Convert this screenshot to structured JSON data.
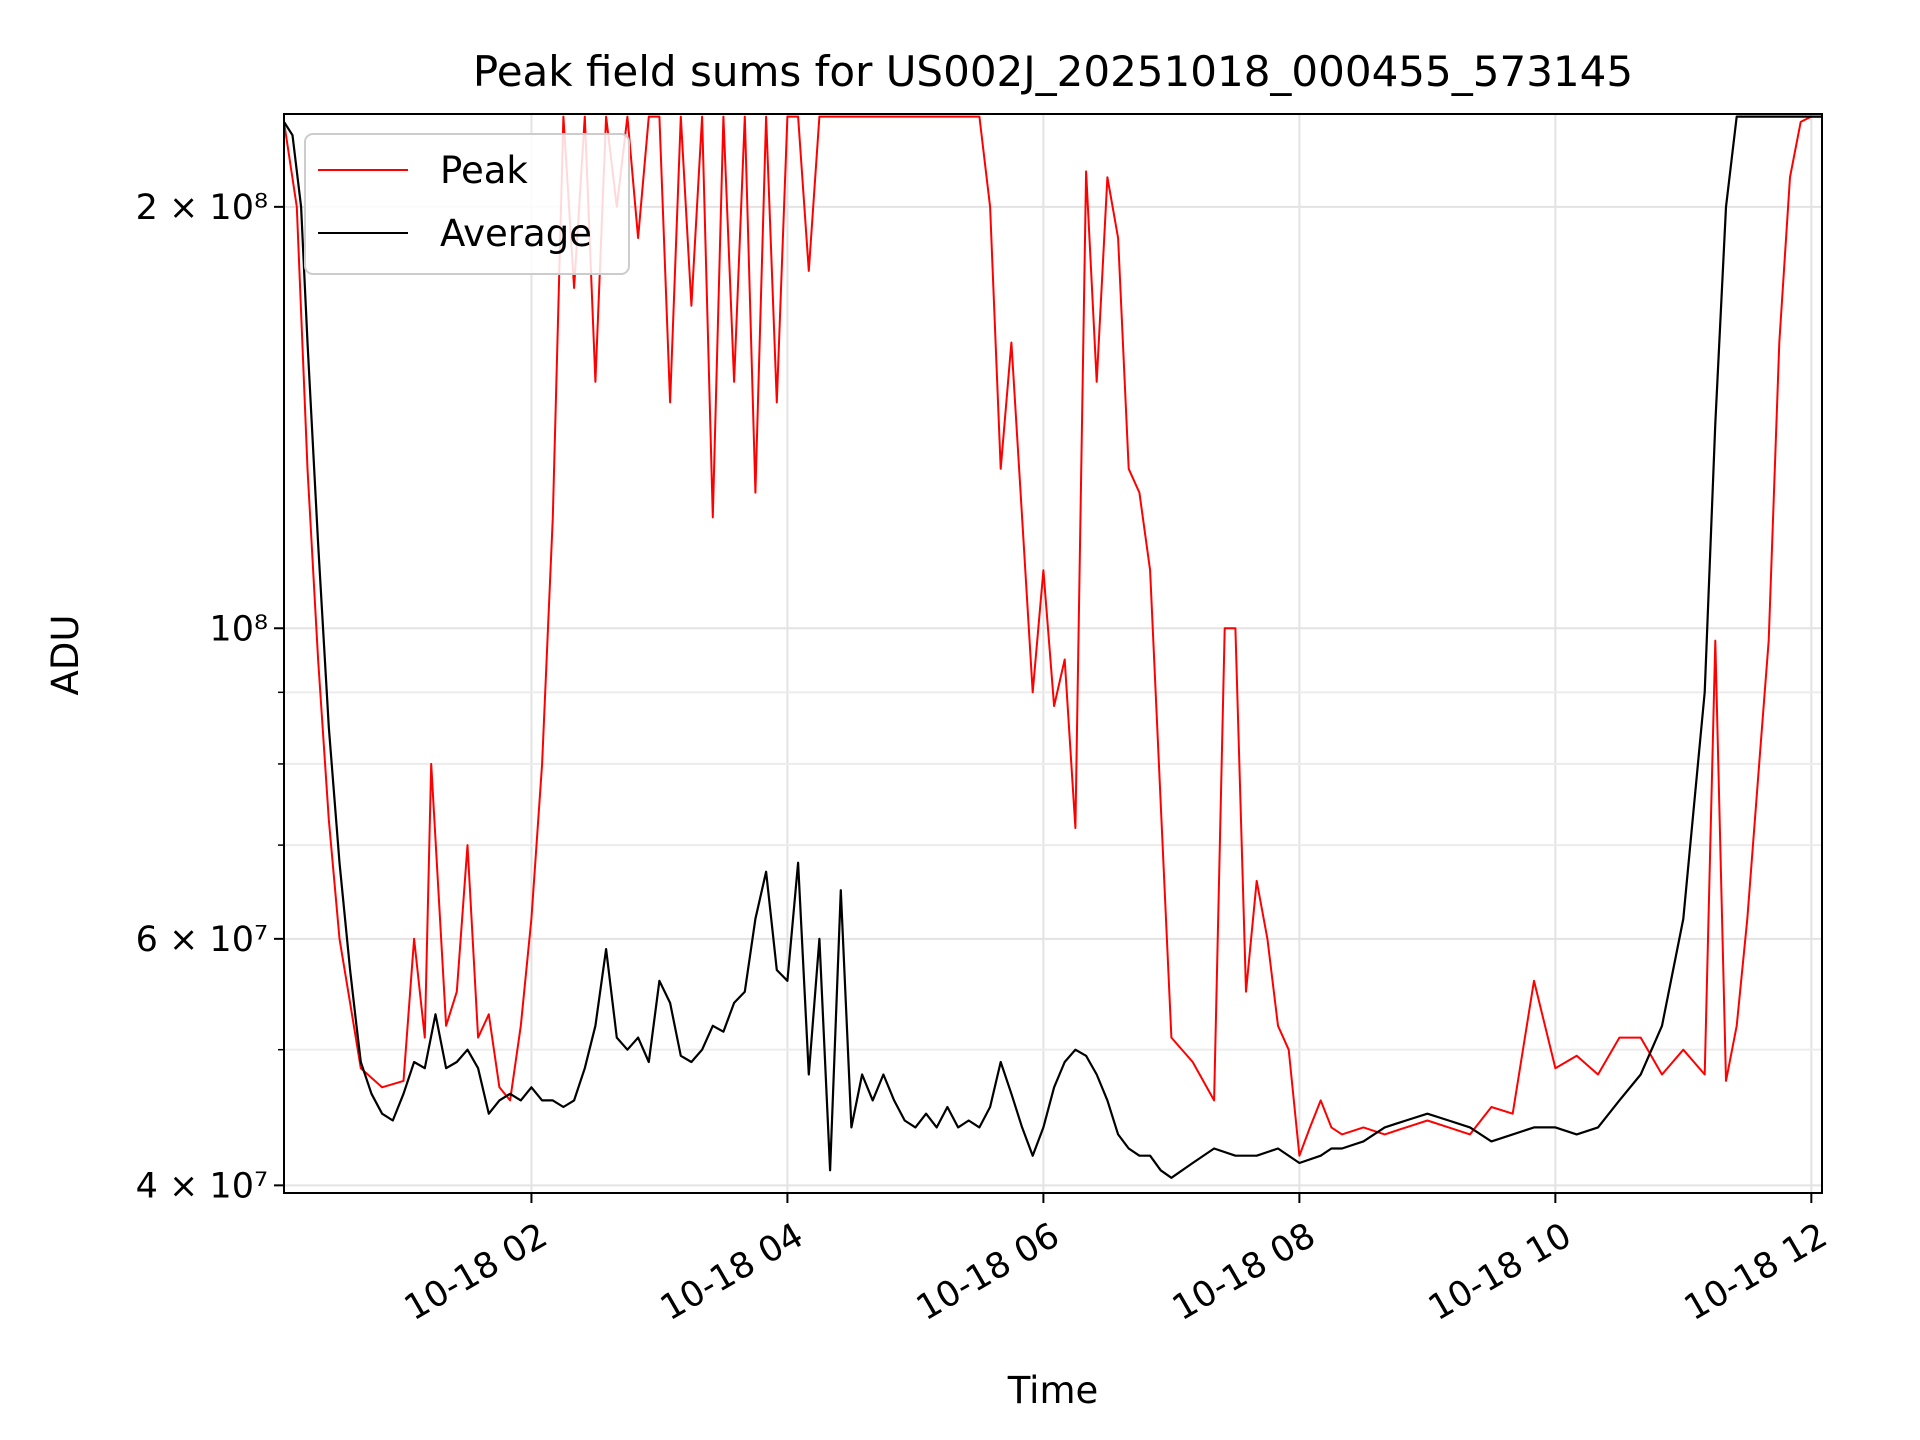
{
  "chart_data": {
    "type": "line",
    "title": "Peak field sums for US002J_20251018_000455_573145",
    "xlabel": "Time",
    "ylabel": "ADU",
    "x_scale": "time",
    "y_scale": "log",
    "xlim": [
      "2025-10-18 00:04",
      "2025-10-18 12:05"
    ],
    "ylim": [
      39500000,
      233000000
    ],
    "grid": true,
    "legend_position": "upper left",
    "x_ticks": [
      {
        "value": "2025-10-18 02:00",
        "label": "10-18 02"
      },
      {
        "value": "2025-10-18 04:00",
        "label": "10-18 04"
      },
      {
        "value": "2025-10-18 06:00",
        "label": "10-18 06"
      },
      {
        "value": "2025-10-18 08:00",
        "label": "10-18 08"
      },
      {
        "value": "2025-10-18 10:00",
        "label": "10-18 10"
      },
      {
        "value": "2025-10-18 12:00",
        "label": "10-18 12"
      }
    ],
    "y_major_ticks": [
      {
        "value": 40000000,
        "label": "4 × 10⁷"
      },
      {
        "value": 60000000,
        "label": "6 × 10⁷"
      },
      {
        "value": 100000000,
        "label": "10⁸"
      },
      {
        "value": 200000000,
        "label": "2 × 10⁸"
      }
    ],
    "y_minor_ticks": [
      50000000,
      70000000,
      80000000,
      90000000
    ],
    "series": [
      {
        "name": "Peak",
        "color": "#ff0000",
        "x": [
          "00:04",
          "00:10",
          "00:15",
          "00:20",
          "00:25",
          "00:30",
          "00:35",
          "00:40",
          "00:50",
          "01:00",
          "01:05",
          "01:10",
          "01:13",
          "01:20",
          "01:25",
          "01:30",
          "01:35",
          "01:40",
          "01:45",
          "01:50",
          "01:55",
          "02:00",
          "02:05",
          "02:10",
          "02:15",
          "02:20",
          "02:25",
          "02:30",
          "02:35",
          "02:40",
          "02:45",
          "02:50",
          "02:55",
          "03:00",
          "03:05",
          "03:10",
          "03:15",
          "03:20",
          "03:25",
          "03:30",
          "03:35",
          "03:40",
          "03:45",
          "03:50",
          "03:55",
          "04:00",
          "04:05",
          "04:10",
          "04:15",
          "04:20",
          "04:25",
          "04:30",
          "04:35",
          "04:40",
          "04:45",
          "04:50",
          "04:55",
          "05:00",
          "05:05",
          "05:10",
          "05:15",
          "05:20",
          "05:25",
          "05:30",
          "05:35",
          "05:40",
          "05:45",
          "05:50",
          "05:55",
          "06:00",
          "06:05",
          "06:10",
          "06:15",
          "06:20",
          "06:25",
          "06:30",
          "06:35",
          "06:40",
          "06:45",
          "06:50",
          "06:55",
          "07:00",
          "07:10",
          "07:20",
          "07:25",
          "07:30",
          "07:35",
          "07:40",
          "07:45",
          "07:50",
          "07:55",
          "08:00",
          "08:05",
          "08:10",
          "08:15",
          "08:20",
          "08:30",
          "08:40",
          "08:50",
          "09:00",
          "09:10",
          "09:20",
          "09:30",
          "09:40",
          "09:50",
          "10:00",
          "10:10",
          "10:20",
          "10:30",
          "10:40",
          "10:50",
          "11:00",
          "11:10",
          "11:15",
          "11:20",
          "11:25",
          "11:30",
          "11:35",
          "11:40",
          "11:45",
          "11:50",
          "11:55",
          "12:00",
          "12:05"
        ],
        "y": [
          230000000,
          200000000,
          130000000,
          95000000,
          73000000,
          60000000,
          54000000,
          48500000,
          47000000,
          47500000,
          60000000,
          51000000,
          80000000,
          52000000,
          55000000,
          70000000,
          51000000,
          53000000,
          47000000,
          46000000,
          52000000,
          62000000,
          80000000,
          120000000,
          232000000,
          175000000,
          232000000,
          150000000,
          232000000,
          200000000,
          232000000,
          190000000,
          232000000,
          232000000,
          145000000,
          232000000,
          170000000,
          232000000,
          120000000,
          232000000,
          150000000,
          232000000,
          125000000,
          232000000,
          145000000,
          232000000,
          232000000,
          180000000,
          232000000,
          232000000,
          232000000,
          232000000,
          232000000,
          232000000,
          232000000,
          232000000,
          232000000,
          232000000,
          232000000,
          232000000,
          232000000,
          232000000,
          232000000,
          232000000,
          200000000,
          130000000,
          160000000,
          120000000,
          90000000,
          110000000,
          88000000,
          95000000,
          72000000,
          212000000,
          150000000,
          210000000,
          190000000,
          130000000,
          125000000,
          110000000,
          75000000,
          51000000,
          49000000,
          46000000,
          100000000,
          100000000,
          55000000,
          66000000,
          60000000,
          52000000,
          50000000,
          42000000,
          44000000,
          46000000,
          44000000,
          43500000,
          44000000,
          43500000,
          44000000,
          44500000,
          44000000,
          43500000,
          45500000,
          45000000,
          56000000,
          48500000,
          49500000,
          48000000,
          51000000,
          51000000,
          48000000,
          50000000,
          48000000,
          98000000,
          47500000,
          52000000,
          62000000,
          78000000,
          98000000,
          160000000,
          210000000,
          230000000,
          232000000,
          232000000
        ]
      },
      {
        "name": "Average",
        "color": "#000000",
        "x": [
          "00:04",
          "00:08",
          "00:12",
          "00:15",
          "00:20",
          "00:25",
          "00:30",
          "00:35",
          "00:38",
          "00:40",
          "00:45",
          "00:50",
          "00:55",
          "01:00",
          "01:05",
          "01:10",
          "01:15",
          "01:20",
          "01:25",
          "01:30",
          "01:35",
          "01:40",
          "01:45",
          "01:50",
          "01:55",
          "02:00",
          "02:05",
          "02:10",
          "02:15",
          "02:20",
          "02:25",
          "02:30",
          "02:35",
          "02:40",
          "02:45",
          "02:50",
          "02:55",
          "03:00",
          "03:05",
          "03:10",
          "03:15",
          "03:20",
          "03:25",
          "03:30",
          "03:35",
          "03:40",
          "03:45",
          "03:50",
          "03:55",
          "04:00",
          "04:05",
          "04:10",
          "04:15",
          "04:20",
          "04:25",
          "04:30",
          "04:35",
          "04:40",
          "04:45",
          "04:50",
          "04:55",
          "05:00",
          "05:05",
          "05:10",
          "05:15",
          "05:20",
          "05:25",
          "05:30",
          "05:35",
          "05:40",
          "05:45",
          "05:50",
          "05:55",
          "06:00",
          "06:05",
          "06:10",
          "06:15",
          "06:20",
          "06:25",
          "06:30",
          "06:35",
          "06:40",
          "06:45",
          "06:50",
          "06:55",
          "07:00",
          "07:10",
          "07:20",
          "07:30",
          "07:40",
          "07:50",
          "08:00",
          "08:10",
          "08:15",
          "08:20",
          "08:30",
          "08:40",
          "08:50",
          "09:00",
          "09:10",
          "09:20",
          "09:30",
          "09:40",
          "09:50",
          "10:00",
          "10:10",
          "10:20",
          "10:30",
          "10:40",
          "10:50",
          "11:00",
          "11:10",
          "11:15",
          "11:20",
          "11:25",
          "11:30",
          "11:35",
          "11:40",
          "11:45",
          "11:50",
          "11:55",
          "12:00",
          "12:05"
        ],
        "y": [
          230000000,
          225000000,
          200000000,
          160000000,
          115000000,
          85000000,
          68000000,
          57000000,
          52000000,
          49000000,
          46500000,
          45000000,
          44500000,
          46500000,
          49000000,
          48500000,
          53000000,
          48500000,
          49000000,
          50000000,
          48500000,
          45000000,
          46000000,
          46500000,
          46000000,
          47000000,
          46000000,
          46000000,
          45500000,
          46000000,
          48500000,
          52000000,
          59000000,
          51000000,
          50000000,
          51000000,
          49000000,
          56000000,
          54000000,
          49500000,
          49000000,
          50000000,
          52000000,
          51500000,
          54000000,
          55000000,
          62000000,
          67000000,
          57000000,
          56000000,
          68000000,
          48000000,
          60000000,
          41000000,
          65000000,
          44000000,
          48000000,
          46000000,
          48000000,
          46000000,
          44500000,
          44000000,
          45000000,
          44000000,
          45500000,
          44000000,
          44500000,
          44000000,
          45500000,
          49000000,
          46500000,
          44000000,
          42000000,
          44000000,
          47000000,
          49000000,
          50000000,
          49500000,
          48000000,
          46000000,
          43500000,
          42500000,
          42000000,
          42000000,
          41000000,
          40500000,
          41500000,
          42500000,
          42000000,
          42000000,
          42500000,
          41500000,
          42000000,
          42500000,
          42500000,
          43000000,
          44000000,
          44500000,
          45000000,
          44500000,
          44000000,
          43000000,
          43500000,
          44000000,
          44000000,
          43500000,
          44000000,
          46000000,
          48000000,
          52000000,
          62000000,
          90000000,
          140000000,
          200000000,
          232000000,
          232000000,
          232000000,
          232000000,
          232000000,
          232000000,
          232000000,
          232000000,
          232000000
        ]
      }
    ]
  }
}
